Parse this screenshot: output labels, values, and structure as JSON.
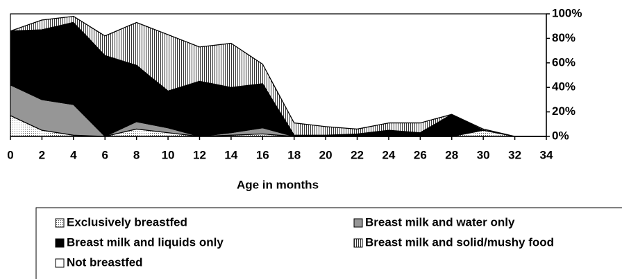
{
  "chart_data": {
    "type": "stacked-area",
    "x_label": "Age in months",
    "x": [
      0,
      2,
      4,
      6,
      8,
      10,
      12,
      14,
      16,
      18,
      20,
      22,
      24,
      26,
      28,
      30,
      32,
      34
    ],
    "xlim": [
      0,
      34
    ],
    "xticks": [
      0,
      2,
      4,
      6,
      8,
      10,
      12,
      14,
      16,
      18,
      20,
      22,
      24,
      26,
      28,
      30,
      32,
      34
    ],
    "ylim": [
      0,
      100
    ],
    "yticks": [
      {
        "value": 0,
        "label": "0%"
      },
      {
        "value": 20,
        "label": "20%"
      },
      {
        "value": 40,
        "label": "40%"
      },
      {
        "value": 60,
        "label": "60%"
      },
      {
        "value": 80,
        "label": "80%"
      },
      {
        "value": 100,
        "label": "100%"
      }
    ],
    "y_axis_side": "right",
    "series": [
      {
        "name": "Exclusively breastfed",
        "color": "#d8d8d8",
        "pattern": "dots",
        "values": [
          17,
          5,
          1,
          0,
          6,
          3,
          0,
          1,
          2,
          0,
          0,
          0,
          0,
          0,
          0,
          5,
          0,
          0
        ]
      },
      {
        "name": "Breast milk and water only",
        "color": "#969696",
        "pattern": "solid",
        "values": [
          25,
          25,
          25,
          0,
          6,
          4,
          0,
          2,
          5,
          0,
          0,
          0,
          0,
          0,
          0,
          0,
          0,
          0
        ]
      },
      {
        "name": "Breast milk and liquids only",
        "color": "#000000",
        "pattern": "solid",
        "values": [
          44,
          57,
          67,
          66,
          46,
          30,
          45,
          37,
          36,
          1,
          1,
          2,
          5,
          3,
          18,
          0,
          0,
          0
        ]
      },
      {
        "name": "Breast milk and solid/mushy food",
        "color": "#c8c8c8",
        "pattern": "stripes",
        "values": [
          0,
          8,
          5,
          16,
          35,
          46,
          28,
          36,
          16,
          10,
          7,
          4,
          6,
          8,
          0,
          1,
          0,
          0
        ]
      },
      {
        "name": "Not breastfed",
        "color": "#ffffff",
        "pattern": "solid",
        "values": [
          14,
          5,
          2,
          18,
          7,
          17,
          27,
          24,
          41,
          89,
          92,
          94,
          89,
          89,
          82,
          94,
          100,
          100
        ]
      }
    ]
  }
}
